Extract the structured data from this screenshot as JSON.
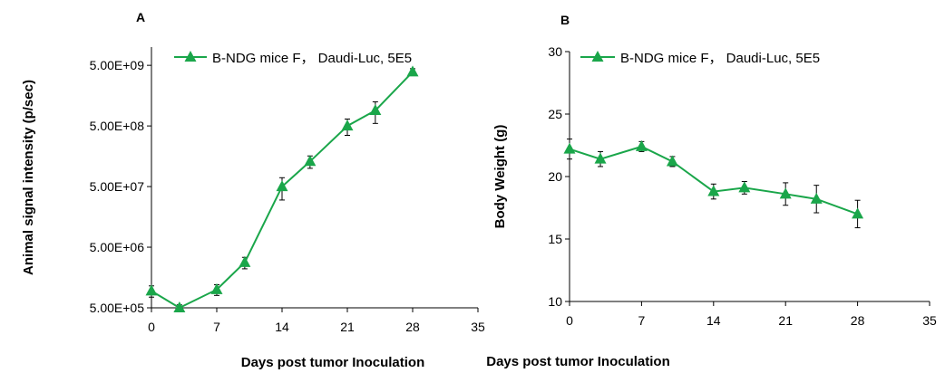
{
  "chart_data": [
    {
      "type": "line",
      "panel_label": "A",
      "ylabel": "Animal signal intensity (p/sec)",
      "xlabel": "Days post tumor Inoculation",
      "y_scale": "log",
      "ylim": [
        500000,
        10000000000
      ],
      "xlim": [
        0,
        35
      ],
      "x_ticks": [
        0,
        7,
        14,
        21,
        28,
        35
      ],
      "y_ticks": [
        500000,
        5000000,
        50000000,
        500000000,
        5000000000
      ],
      "y_tick_labels": [
        "5.00E+05",
        "5.00E+06",
        "5.00E+07",
        "5.00E+08",
        "5.00E+09"
      ],
      "legend_position": "top",
      "color": "#1aa64a",
      "series": [
        {
          "name": "B-NDG mice F， Daudi-Luc, 5E5",
          "x": [
            0,
            3,
            7,
            10,
            14,
            17,
            21,
            24,
            28
          ],
          "y": [
            950000,
            500000,
            1000000,
            2800000,
            50000000,
            130000000,
            500000000,
            900000000,
            3900000000
          ],
          "err": [
            200000,
            60000,
            200000,
            600000,
            20000000,
            30000000,
            150000000,
            350000000,
            500000000
          ]
        }
      ]
    },
    {
      "type": "line",
      "panel_label": "B",
      "ylabel": "Body Weight (g)",
      "xlabel": "Days post tumor Inoculation",
      "y_scale": "linear",
      "ylim": [
        10,
        30
      ],
      "xlim": [
        0,
        35
      ],
      "x_ticks": [
        0,
        7,
        14,
        21,
        28,
        35
      ],
      "y_ticks": [
        10,
        15,
        20,
        25,
        30
      ],
      "y_tick_labels": [
        "10",
        "15",
        "20",
        "25",
        "30"
      ],
      "legend_position": "top",
      "color": "#1aa64a",
      "series": [
        {
          "name": "B-NDG mice F， Daudi-Luc, 5E5",
          "x": [
            0,
            3,
            7,
            10,
            14,
            17,
            21,
            24,
            28
          ],
          "y": [
            22.2,
            21.4,
            22.4,
            21.2,
            18.8,
            19.1,
            18.6,
            18.2,
            17.0
          ],
          "err": [
            0.8,
            0.6,
            0.4,
            0.4,
            0.6,
            0.5,
            0.9,
            1.1,
            1.1
          ]
        }
      ]
    }
  ]
}
